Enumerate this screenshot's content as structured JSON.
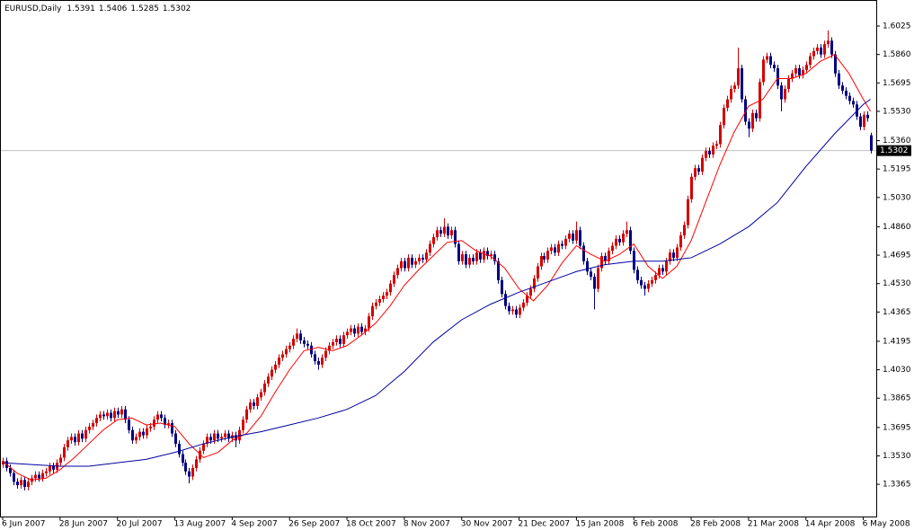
{
  "chart_data": {
    "type": "candlestick",
    "title": "EURUSD,Daily",
    "up_color": "#d40000",
    "down_color": "#000080",
    "price_line_color": "#c0c0c0",
    "ylim": [
      1.3178,
      1.6171
    ],
    "yticks": [
      1.3365,
      {
        "value": 1.353,
        "label": "1.3530"
      },
      1.3695,
      1.3865,
      {
        "value": 1.403,
        "label": "1.4030"
      },
      1.4195,
      1.4365,
      {
        "value": 1.453,
        "label": "1.4530"
      },
      1.4695,
      {
        "value": 1.486,
        "label": "1.4860"
      },
      {
        "value": 1.503,
        "label": "1.5030"
      },
      1.5195,
      {
        "value": 1.536,
        "label": "1.5360"
      },
      {
        "value": 1.553,
        "label": "1.5530"
      },
      1.5695,
      {
        "value": 1.586,
        "label": "1.5860"
      },
      1.6025
    ],
    "categories": [
      "6 Jun 2007",
      null,
      null,
      null,
      null,
      null,
      null,
      null,
      null,
      null,
      null,
      null,
      null,
      null,
      null,
      null,
      "28 Jun 2007",
      null,
      null,
      null,
      null,
      null,
      null,
      null,
      null,
      null,
      null,
      null,
      null,
      null,
      null,
      null,
      "20 Jul 2007",
      null,
      null,
      null,
      null,
      null,
      null,
      null,
      null,
      null,
      null,
      null,
      null,
      null,
      null,
      null,
      "13 Aug 2007",
      null,
      null,
      null,
      null,
      null,
      null,
      null,
      null,
      null,
      null,
      null,
      null,
      null,
      null,
      null,
      "4 Sep 2007",
      null,
      null,
      null,
      null,
      null,
      null,
      null,
      null,
      null,
      null,
      null,
      null,
      null,
      null,
      null,
      "26 Sep 2007",
      null,
      null,
      null,
      null,
      null,
      null,
      null,
      null,
      null,
      null,
      null,
      null,
      null,
      null,
      null,
      "18 Oct 2007",
      null,
      null,
      null,
      null,
      null,
      null,
      null,
      null,
      null,
      null,
      null,
      null,
      null,
      null,
      null,
      "8 Nov 2007",
      null,
      null,
      null,
      null,
      null,
      null,
      null,
      null,
      null,
      null,
      null,
      null,
      null,
      null,
      null,
      "30 Nov 2007",
      null,
      null,
      null,
      null,
      null,
      null,
      null,
      null,
      null,
      null,
      null,
      null,
      null,
      null,
      null,
      "21 Dec 2007",
      null,
      null,
      null,
      null,
      null,
      null,
      null,
      null,
      null,
      null,
      null,
      null,
      null,
      null,
      null,
      "15 Jan 2008",
      null,
      null,
      null,
      null,
      null,
      null,
      null,
      null,
      null,
      null,
      null,
      null,
      null,
      null,
      null,
      "6 Feb 2008",
      null,
      null,
      null,
      null,
      null,
      null,
      null,
      null,
      null,
      null,
      null,
      null,
      null,
      null,
      null,
      "28 Feb 2008",
      null,
      null,
      null,
      null,
      null,
      null,
      null,
      null,
      null,
      null,
      null,
      null,
      null,
      null,
      null,
      "21 Mar 2008",
      null,
      null,
      null,
      null,
      null,
      null,
      null,
      null,
      null,
      null,
      null,
      null,
      null,
      null,
      null,
      "14 Apr 2008",
      null,
      null,
      null,
      null,
      null,
      null,
      null,
      null,
      null,
      null,
      null,
      null,
      null,
      null,
      null,
      "6 May 2008",
      null,
      null
    ],
    "open": [
      1.348,
      1.35,
      1.346,
      1.343,
      1.338,
      1.336,
      1.339,
      1.335,
      1.338,
      1.34,
      1.342,
      1.34,
      1.343,
      1.344,
      1.347,
      1.345,
      1.349,
      1.352,
      1.358,
      1.362,
      1.364,
      1.361,
      1.366,
      1.363,
      1.368,
      1.37,
      1.372,
      1.375,
      1.377,
      1.376,
      1.378,
      1.375,
      1.379,
      1.377,
      1.38,
      1.374,
      1.368,
      1.362,
      1.364,
      1.367,
      1.365,
      1.369,
      1.37,
      1.374,
      1.377,
      1.375,
      1.371,
      1.372,
      1.366,
      1.36,
      1.354,
      1.349,
      1.344,
      1.341,
      1.346,
      1.351,
      1.356,
      1.36,
      1.364,
      1.362,
      1.366,
      1.363,
      1.364,
      1.366,
      1.363,
      1.365,
      1.362,
      1.368,
      1.374,
      1.38,
      1.384,
      1.382,
      1.387,
      1.39,
      1.395,
      1.399,
      1.403,
      1.406,
      1.41,
      1.412,
      1.415,
      1.417,
      1.421,
      1.424,
      1.42,
      1.418,
      1.417,
      1.412,
      1.408,
      1.406,
      1.41,
      1.414,
      1.417,
      1.419,
      1.421,
      1.418,
      1.423,
      1.425,
      1.427,
      1.424,
      1.428,
      1.425,
      1.427,
      1.434,
      1.44,
      1.442,
      1.444,
      1.446,
      1.448,
      1.453,
      1.458,
      1.462,
      1.466,
      1.462,
      1.468,
      1.464,
      1.466,
      1.468,
      1.467,
      1.471,
      1.476,
      1.48,
      1.484,
      1.482,
      1.486,
      1.481,
      1.484,
      1.476,
      1.466,
      1.47,
      1.464,
      1.468,
      1.466,
      1.471,
      1.467,
      1.472,
      1.469,
      1.47,
      1.466,
      1.455,
      1.447,
      1.44,
      1.437,
      1.438,
      1.435,
      1.439,
      1.442,
      1.446,
      1.45,
      1.456,
      1.463,
      1.469,
      1.467,
      1.472,
      1.474,
      1.471,
      1.476,
      1.475,
      1.479,
      1.482,
      1.478,
      1.484,
      1.475,
      1.466,
      1.46,
      1.457,
      1.45,
      1.462,
      1.469,
      1.466,
      1.472,
      1.475,
      1.479,
      1.477,
      1.482,
      1.484,
      1.472,
      1.461,
      1.455,
      1.452,
      1.45,
      1.453,
      1.455,
      1.458,
      1.462,
      1.46,
      1.466,
      1.471,
      1.468,
      1.474,
      1.481,
      1.487,
      1.502,
      1.515,
      1.52,
      1.518,
      1.526,
      1.53,
      1.528,
      1.533,
      1.534,
      1.545,
      1.555,
      1.56,
      1.566,
      1.568,
      1.578,
      1.56,
      1.547,
      1.543,
      1.552,
      1.549,
      1.57,
      1.583,
      1.585,
      1.58,
      1.578,
      1.568,
      1.56,
      1.566,
      1.572,
      1.575,
      1.578,
      1.574,
      1.577,
      1.58,
      1.585,
      1.588,
      1.59,
      1.586,
      1.592,
      1.594,
      1.586,
      1.575,
      1.568,
      1.565,
      1.562,
      1.559,
      1.557,
      1.55,
      1.544,
      1.551,
      1.5391
    ],
    "high": [
      1.352,
      1.352,
      1.348,
      1.345,
      1.34,
      1.341,
      1.341,
      1.34,
      1.342,
      1.344,
      1.344,
      1.345,
      1.346,
      1.349,
      1.349,
      1.351,
      1.354,
      1.36,
      1.364,
      1.366,
      1.366,
      1.368,
      1.368,
      1.37,
      1.372,
      1.374,
      1.377,
      1.379,
      1.379,
      1.38,
      1.38,
      1.381,
      1.381,
      1.382,
      1.382,
      1.376,
      1.37,
      1.366,
      1.369,
      1.369,
      1.371,
      1.372,
      1.376,
      1.379,
      1.379,
      1.377,
      1.374,
      1.374,
      1.368,
      1.362,
      1.356,
      1.351,
      1.346,
      1.348,
      1.353,
      1.358,
      1.362,
      1.366,
      1.366,
      1.368,
      1.368,
      1.366,
      1.368,
      1.368,
      1.367,
      1.367,
      1.37,
      1.376,
      1.382,
      1.386,
      1.386,
      1.389,
      1.392,
      1.397,
      1.401,
      1.405,
      1.408,
      1.412,
      1.414,
      1.417,
      1.419,
      1.423,
      1.427,
      1.426,
      1.422,
      1.42,
      1.419,
      1.414,
      1.41,
      1.412,
      1.416,
      1.419,
      1.421,
      1.423,
      1.423,
      1.425,
      1.427,
      1.429,
      1.429,
      1.43,
      1.43,
      1.429,
      1.436,
      1.442,
      1.444,
      1.446,
      1.448,
      1.45,
      1.455,
      1.46,
      1.464,
      1.468,
      1.468,
      1.47,
      1.47,
      1.468,
      1.47,
      1.47,
      1.473,
      1.478,
      1.482,
      1.486,
      1.486,
      1.491,
      1.488,
      1.486,
      1.486,
      1.478,
      1.472,
      1.472,
      1.47,
      1.47,
      1.473,
      1.473,
      1.474,
      1.474,
      1.472,
      1.472,
      1.468,
      1.457,
      1.449,
      1.442,
      1.44,
      1.44,
      1.441,
      1.444,
      1.448,
      1.452,
      1.458,
      1.465,
      1.471,
      1.471,
      1.474,
      1.476,
      1.476,
      1.478,
      1.478,
      1.481,
      1.484,
      1.484,
      1.489,
      1.486,
      1.477,
      1.468,
      1.462,
      1.459,
      1.464,
      1.471,
      1.471,
      1.474,
      1.477,
      1.481,
      1.481,
      1.484,
      1.489,
      1.486,
      1.474,
      1.463,
      1.457,
      1.454,
      1.455,
      1.457,
      1.46,
      1.464,
      1.464,
      1.468,
      1.473,
      1.473,
      1.476,
      1.483,
      1.489,
      1.504,
      1.517,
      1.522,
      1.522,
      1.528,
      1.532,
      1.532,
      1.535,
      1.536,
      1.547,
      1.557,
      1.562,
      1.568,
      1.57,
      1.59,
      1.58,
      1.562,
      1.549,
      1.554,
      1.554,
      1.572,
      1.585,
      1.587,
      1.587,
      1.582,
      1.58,
      1.57,
      1.568,
      1.574,
      1.577,
      1.58,
      1.58,
      1.579,
      1.582,
      1.587,
      1.59,
      1.592,
      1.592,
      1.594,
      1.6,
      1.596,
      1.588,
      1.577,
      1.57,
      1.567,
      1.564,
      1.561,
      1.559,
      1.552,
      1.553,
      1.553,
      1.5406
    ],
    "low": [
      1.346,
      1.344,
      1.341,
      1.336,
      1.334,
      1.334,
      1.333,
      1.333,
      1.336,
      1.338,
      1.338,
      1.338,
      1.341,
      1.342,
      1.343,
      1.343,
      1.347,
      1.35,
      1.356,
      1.36,
      1.359,
      1.359,
      1.361,
      1.361,
      1.366,
      1.368,
      1.37,
      1.373,
      1.374,
      1.374,
      1.373,
      1.373,
      1.375,
      1.375,
      1.372,
      1.366,
      1.36,
      1.36,
      1.362,
      1.363,
      1.363,
      1.367,
      1.368,
      1.372,
      1.373,
      1.369,
      1.369,
      1.364,
      1.358,
      1.352,
      1.347,
      1.342,
      1.337,
      1.339,
      1.344,
      1.349,
      1.354,
      1.358,
      1.36,
      1.36,
      1.361,
      1.361,
      1.362,
      1.361,
      1.361,
      1.358,
      1.36,
      1.366,
      1.372,
      1.378,
      1.38,
      1.38,
      1.385,
      1.388,
      1.393,
      1.397,
      1.401,
      1.404,
      1.408,
      1.41,
      1.413,
      1.415,
      1.419,
      1.418,
      1.416,
      1.415,
      1.41,
      1.406,
      1.403,
      1.404,
      1.408,
      1.412,
      1.415,
      1.417,
      1.416,
      1.416,
      1.421,
      1.423,
      1.422,
      1.422,
      1.423,
      1.423,
      1.425,
      1.432,
      1.438,
      1.44,
      1.442,
      1.444,
      1.446,
      1.451,
      1.456,
      1.46,
      1.46,
      1.46,
      1.462,
      1.462,
      1.464,
      1.465,
      1.465,
      1.469,
      1.474,
      1.478,
      1.48,
      1.48,
      1.479,
      1.479,
      1.474,
      1.464,
      1.464,
      1.462,
      1.462,
      1.464,
      1.464,
      1.465,
      1.465,
      1.467,
      1.467,
      1.464,
      1.453,
      1.445,
      1.438,
      1.435,
      1.435,
      1.433,
      1.433,
      1.437,
      1.44,
      1.444,
      1.448,
      1.454,
      1.461,
      1.465,
      1.465,
      1.47,
      1.469,
      1.469,
      1.473,
      1.473,
      1.477,
      1.476,
      1.476,
      1.473,
      1.464,
      1.458,
      1.455,
      1.438,
      1.448,
      1.46,
      1.464,
      1.464,
      1.47,
      1.473,
      1.475,
      1.475,
      1.48,
      1.47,
      1.459,
      1.453,
      1.45,
      1.446,
      1.448,
      1.451,
      1.453,
      1.456,
      1.458,
      1.458,
      1.464,
      1.466,
      1.466,
      1.472,
      1.479,
      1.485,
      1.5,
      1.513,
      1.516,
      1.516,
      1.524,
      1.526,
      1.526,
      1.531,
      1.532,
      1.543,
      1.553,
      1.558,
      1.564,
      1.566,
      1.558,
      1.545,
      1.538,
      1.541,
      1.547,
      1.547,
      1.568,
      1.581,
      1.578,
      1.576,
      1.566,
      1.553,
      1.558,
      1.564,
      1.57,
      1.573,
      1.572,
      1.572,
      1.575,
      1.578,
      1.583,
      1.586,
      1.584,
      1.584,
      1.59,
      1.584,
      1.573,
      1.566,
      1.563,
      1.56,
      1.557,
      1.555,
      1.548,
      1.542,
      1.542,
      1.547,
      1.5285
    ],
    "close": [
      1.35,
      1.346,
      1.343,
      1.338,
      1.336,
      1.339,
      1.335,
      1.338,
      1.34,
      1.342,
      1.34,
      1.343,
      1.344,
      1.347,
      1.345,
      1.349,
      1.352,
      1.358,
      1.362,
      1.364,
      1.361,
      1.366,
      1.363,
      1.368,
      1.37,
      1.372,
      1.375,
      1.377,
      1.376,
      1.378,
      1.375,
      1.379,
      1.377,
      1.38,
      1.374,
      1.368,
      1.362,
      1.364,
      1.367,
      1.365,
      1.369,
      1.37,
      1.374,
      1.377,
      1.375,
      1.371,
      1.372,
      1.366,
      1.36,
      1.354,
      1.349,
      1.344,
      1.341,
      1.346,
      1.351,
      1.356,
      1.36,
      1.364,
      1.362,
      1.366,
      1.363,
      1.364,
      1.366,
      1.363,
      1.365,
      1.362,
      1.368,
      1.374,
      1.38,
      1.384,
      1.382,
      1.387,
      1.39,
      1.395,
      1.399,
      1.403,
      1.406,
      1.41,
      1.412,
      1.415,
      1.417,
      1.421,
      1.424,
      1.42,
      1.418,
      1.417,
      1.412,
      1.408,
      1.406,
      1.41,
      1.414,
      1.417,
      1.419,
      1.421,
      1.418,
      1.423,
      1.425,
      1.427,
      1.424,
      1.428,
      1.425,
      1.427,
      1.434,
      1.44,
      1.442,
      1.444,
      1.446,
      1.448,
      1.453,
      1.458,
      1.462,
      1.466,
      1.462,
      1.468,
      1.464,
      1.466,
      1.468,
      1.467,
      1.471,
      1.476,
      1.48,
      1.484,
      1.482,
      1.486,
      1.481,
      1.484,
      1.476,
      1.466,
      1.47,
      1.464,
      1.468,
      1.466,
      1.471,
      1.467,
      1.472,
      1.469,
      1.47,
      1.466,
      1.455,
      1.447,
      1.44,
      1.437,
      1.438,
      1.435,
      1.439,
      1.442,
      1.446,
      1.45,
      1.456,
      1.463,
      1.469,
      1.467,
      1.472,
      1.474,
      1.471,
      1.476,
      1.475,
      1.479,
      1.482,
      1.478,
      1.484,
      1.475,
      1.466,
      1.46,
      1.457,
      1.45,
      1.462,
      1.469,
      1.466,
      1.472,
      1.475,
      1.479,
      1.477,
      1.482,
      1.484,
      1.472,
      1.461,
      1.455,
      1.452,
      1.45,
      1.453,
      1.455,
      1.458,
      1.462,
      1.46,
      1.466,
      1.471,
      1.468,
      1.474,
      1.481,
      1.487,
      1.502,
      1.515,
      1.52,
      1.518,
      1.526,
      1.53,
      1.528,
      1.533,
      1.534,
      1.545,
      1.555,
      1.56,
      1.566,
      1.568,
      1.578,
      1.56,
      1.547,
      1.543,
      1.552,
      1.549,
      1.57,
      1.583,
      1.585,
      1.58,
      1.578,
      1.568,
      1.56,
      1.566,
      1.572,
      1.575,
      1.578,
      1.574,
      1.577,
      1.58,
      1.585,
      1.588,
      1.59,
      1.586,
      1.592,
      1.594,
      1.586,
      1.575,
      1.568,
      1.565,
      1.562,
      1.559,
      1.557,
      1.55,
      1.544,
      1.551,
      1.549,
      1.5302
    ],
    "lines": [
      {
        "color": "#ff0000",
        "x": [
          0,
          4,
          8,
          12,
          16,
          20,
          24,
          28,
          32,
          36,
          40,
          44,
          48,
          52,
          56,
          60,
          64,
          68,
          72,
          76,
          80,
          84,
          88,
          92,
          96,
          100,
          104,
          108,
          112,
          116,
          120,
          124,
          128,
          132,
          136,
          140,
          144,
          148,
          152,
          156,
          160,
          164,
          168,
          172,
          176,
          180,
          184,
          188,
          192,
          196,
          200,
          204,
          208,
          212,
          216,
          220,
          224,
          228,
          232,
          236,
          240,
          242
        ],
        "values": [
          1.35,
          1.343,
          1.339,
          1.34,
          1.345,
          1.352,
          1.36,
          1.368,
          1.374,
          1.375,
          1.371,
          1.372,
          1.37,
          1.36,
          1.352,
          1.355,
          1.362,
          1.366,
          1.376,
          1.39,
          1.403,
          1.414,
          1.416,
          1.414,
          1.417,
          1.423,
          1.43,
          1.44,
          1.452,
          1.461,
          1.469,
          1.477,
          1.478,
          1.472,
          1.469,
          1.462,
          1.45,
          1.443,
          1.452,
          1.465,
          1.475,
          1.47,
          1.466,
          1.47,
          1.476,
          1.463,
          1.456,
          1.463,
          1.478,
          1.5,
          1.522,
          1.541,
          1.556,
          1.56,
          1.572,
          1.572,
          1.575,
          1.582,
          1.586,
          1.575,
          1.56,
          1.553
        ]
      },
      {
        "color": "#0000a0",
        "x": [
          0,
          8,
          16,
          24,
          32,
          40,
          48,
          56,
          64,
          72,
          80,
          88,
          96,
          104,
          112,
          120,
          128,
          136,
          144,
          152,
          160,
          168,
          176,
          184,
          192,
          200,
          208,
          216,
          224,
          232,
          240,
          242
        ],
        "values": [
          1.349,
          1.348,
          1.347,
          1.347,
          1.349,
          1.351,
          1.355,
          1.36,
          1.364,
          1.367,
          1.371,
          1.375,
          1.38,
          1.388,
          1.402,
          1.419,
          1.432,
          1.441,
          1.448,
          1.454,
          1.46,
          1.464,
          1.466,
          1.466,
          1.468,
          1.476,
          1.486,
          1.5,
          1.521,
          1.54,
          1.557,
          1.56
        ]
      }
    ]
  }
}
